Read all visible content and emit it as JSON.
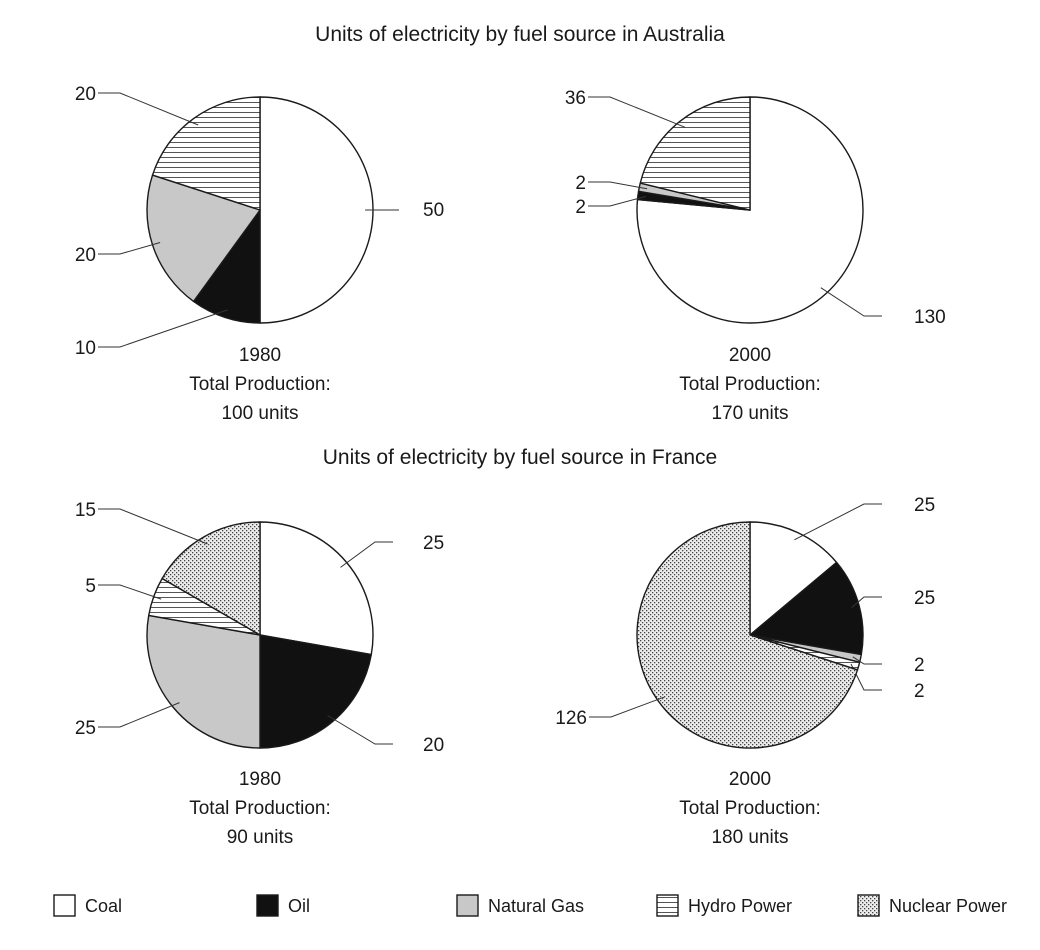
{
  "colors": {
    "stroke": "#1a1a1a",
    "coal": "#ffffff",
    "oil": "#111111",
    "natural_gas": "#c8c8c8",
    "hydro_line": "#555555",
    "nuclear_dot": "#444444"
  },
  "legend": [
    {
      "key": "coal",
      "label": "Coal"
    },
    {
      "key": "oil",
      "label": "Oil"
    },
    {
      "key": "natural_gas",
      "label": "Natural Gas"
    },
    {
      "key": "hydro",
      "label": "Hydro Power"
    },
    {
      "key": "nuclear",
      "label": "Nuclear Power"
    }
  ],
  "sections": [
    {
      "title": "Units of electricity by fuel source in Australia"
    },
    {
      "title": "Units of electricity by fuel source in France"
    }
  ],
  "chart_data": [
    {
      "type": "pie",
      "country": "Australia",
      "year": "1980",
      "total_label": "Total Production:",
      "total_value": "100 units",
      "slices": [
        {
          "key": "coal",
          "value": 50,
          "label": "50"
        },
        {
          "key": "oil",
          "value": 10,
          "label": "10"
        },
        {
          "key": "natural_gas",
          "value": 20,
          "label": "20"
        },
        {
          "key": "hydro",
          "value": 20,
          "label": "20"
        }
      ]
    },
    {
      "type": "pie",
      "country": "Australia",
      "year": "2000",
      "total_label": "Total Production:",
      "total_value": "170 units",
      "slices": [
        {
          "key": "coal",
          "value": 130,
          "label": "130"
        },
        {
          "key": "oil",
          "value": 2,
          "label": "2"
        },
        {
          "key": "natural_gas",
          "value": 2,
          "label": "2"
        },
        {
          "key": "hydro",
          "value": 36,
          "label": "36"
        }
      ]
    },
    {
      "type": "pie",
      "country": "France",
      "year": "1980",
      "total_label": "Total Production:",
      "total_value": "90 units",
      "slices": [
        {
          "key": "coal",
          "value": 25,
          "label": "25"
        },
        {
          "key": "oil",
          "value": 20,
          "label": "20"
        },
        {
          "key": "natural_gas",
          "value": 25,
          "label": "25"
        },
        {
          "key": "hydro",
          "value": 5,
          "label": "5"
        },
        {
          "key": "nuclear",
          "value": 15,
          "label": "15"
        }
      ]
    },
    {
      "type": "pie",
      "country": "France",
      "year": "2000",
      "total_label": "Total Production:",
      "total_value": "180 units",
      "slices": [
        {
          "key": "coal",
          "value": 25,
          "label": "25"
        },
        {
          "key": "oil",
          "value": 25,
          "label": "25"
        },
        {
          "key": "natural_gas",
          "value": 2,
          "label": "2"
        },
        {
          "key": "hydro",
          "value": 2,
          "label": "2"
        },
        {
          "key": "nuclear",
          "value": 126,
          "label": "126"
        }
      ]
    }
  ]
}
